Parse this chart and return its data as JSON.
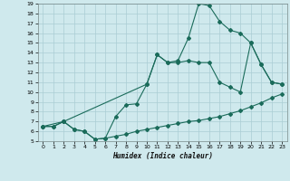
{
  "xlabel": "Humidex (Indice chaleur)",
  "bg_color": "#cfe9ed",
  "line_color": "#1a6b5a",
  "grid_color": "#aacdd4",
  "xlim": [
    -0.5,
    23.5
  ],
  "ylim": [
    5,
    19
  ],
  "xticks": [
    0,
    1,
    2,
    3,
    4,
    5,
    6,
    7,
    8,
    9,
    10,
    11,
    12,
    13,
    14,
    15,
    16,
    17,
    18,
    19,
    20,
    21,
    22,
    23
  ],
  "yticks": [
    5,
    6,
    7,
    8,
    9,
    10,
    11,
    12,
    13,
    14,
    15,
    16,
    17,
    18,
    19
  ],
  "line1_x": [
    0,
    1,
    2,
    3,
    4,
    5,
    6,
    7,
    8,
    9,
    10,
    11,
    12,
    13,
    14,
    15,
    16,
    17,
    18,
    19,
    20,
    21,
    22,
    23
  ],
  "line1_y": [
    6.5,
    6.5,
    7.0,
    6.2,
    6.0,
    5.2,
    5.3,
    5.5,
    5.7,
    6.0,
    6.2,
    6.4,
    6.6,
    6.8,
    7.0,
    7.1,
    7.3,
    7.5,
    7.8,
    8.1,
    8.5,
    8.9,
    9.4,
    9.8
  ],
  "line2_x": [
    0,
    1,
    2,
    3,
    4,
    5,
    6,
    7,
    8,
    9,
    10,
    11,
    12,
    13,
    14,
    15,
    16,
    17,
    18,
    19,
    20,
    21,
    22,
    23
  ],
  "line2_y": [
    6.5,
    6.5,
    7.0,
    6.2,
    6.0,
    5.2,
    5.3,
    7.5,
    8.7,
    8.8,
    10.8,
    13.8,
    13.0,
    13.0,
    13.2,
    13.0,
    13.0,
    11.0,
    10.5,
    10.0,
    15.0,
    12.8,
    11.0,
    10.8
  ],
  "line3_x": [
    0,
    2,
    10,
    11,
    12,
    13,
    14,
    15,
    16,
    17,
    18,
    19,
    20,
    21,
    22,
    23
  ],
  "line3_y": [
    6.5,
    7.0,
    10.8,
    13.8,
    13.0,
    13.2,
    15.5,
    19.0,
    18.8,
    17.2,
    16.3,
    16.0,
    15.0,
    12.8,
    11.0,
    10.8
  ]
}
